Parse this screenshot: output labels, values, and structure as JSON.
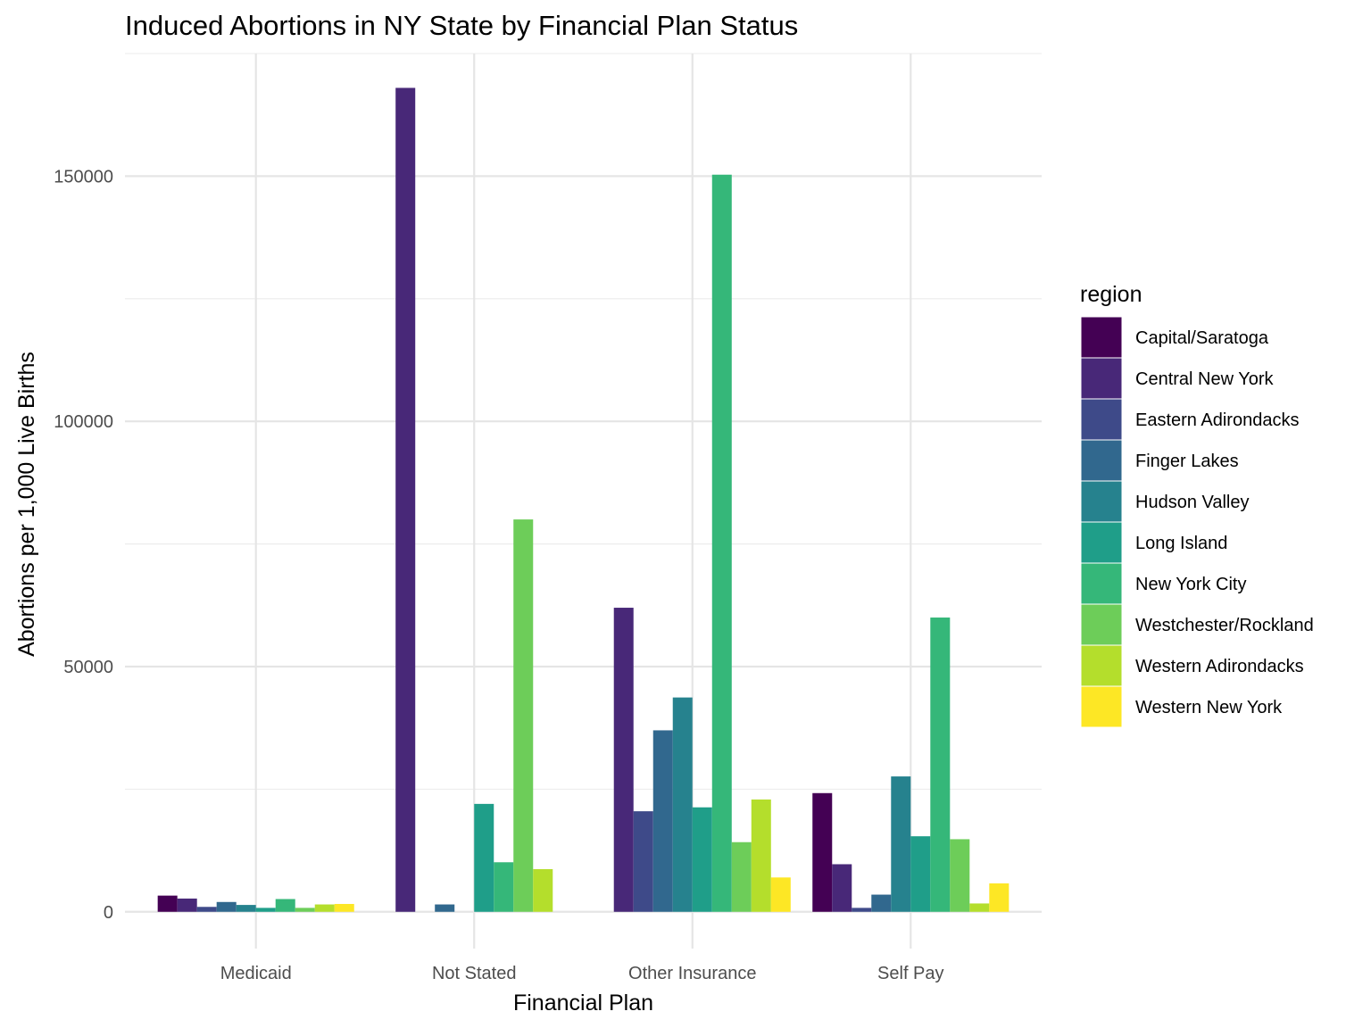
{
  "chart_data": {
    "type": "bar",
    "title": "Induced Abortions in NY State by Financial Plan Status",
    "xlabel": "Financial Plan",
    "ylabel": "Abortions per 1,000 Live Births",
    "categories": [
      "Medicaid",
      "Not Stated",
      "Other Insurance",
      "Self Pay"
    ],
    "ylim": [
      -7500,
      175000
    ],
    "yticks": [
      0,
      50000,
      100000,
      150000
    ],
    "grid": true,
    "legend": {
      "title": "region",
      "placement": "right"
    },
    "series": [
      {
        "name": "Capital/Saratoga",
        "color": "#440154",
        "values": [
          3300,
          null,
          null,
          24200
        ]
      },
      {
        "name": "Central New York",
        "color": "#482878",
        "values": [
          2700,
          168000,
          62000,
          9700
        ]
      },
      {
        "name": "Eastern Adirondacks",
        "color": "#3E4A89",
        "values": [
          1000,
          null,
          20500,
          800
        ]
      },
      {
        "name": "Finger Lakes",
        "color": "#31688E",
        "values": [
          2000,
          1500,
          37000,
          3500
        ]
      },
      {
        "name": "Hudson Valley",
        "color": "#26828E",
        "values": [
          1400,
          null,
          43700,
          27600
        ]
      },
      {
        "name": "Long Island",
        "color": "#1F9E89",
        "values": [
          800,
          22000,
          21300,
          15400
        ]
      },
      {
        "name": "New York City",
        "color": "#35B779",
        "values": [
          2600,
          10100,
          150300,
          60000
        ]
      },
      {
        "name": "Westchester/Rockland",
        "color": "#6DCD59",
        "values": [
          800,
          80000,
          14200,
          14800
        ]
      },
      {
        "name": "Western Adirondacks",
        "color": "#B4DE2C",
        "values": [
          1500,
          8700,
          22900,
          1700
        ]
      },
      {
        "name": "Western New York",
        "color": "#FDE725",
        "values": [
          1600,
          null,
          7000,
          5800
        ]
      }
    ]
  }
}
